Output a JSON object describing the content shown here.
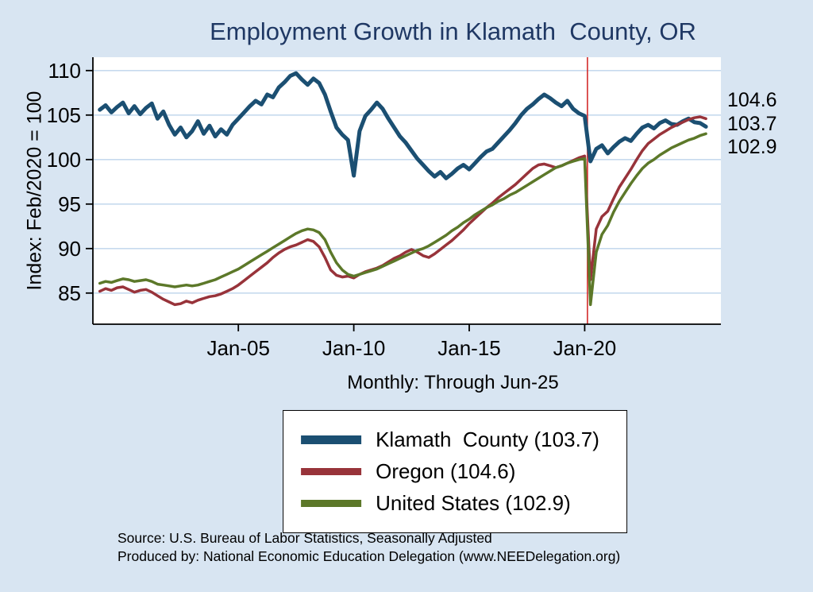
{
  "title": "Employment Growth in Klamath  County, OR",
  "subtitle": "Monthly: Through Jun-25",
  "y_axis_label": "Index: Feb/2020 = 100",
  "end_labels": [
    "104.6",
    "103.7",
    "102.9"
  ],
  "source": {
    "line1": "Source: U.S. Bureau of Labor Statistics, Seasonally Adjusted",
    "line2": "Produced by: National Economic Education Delegation (www.NEEDelegation.org)"
  },
  "legend": [
    {
      "label": "Klamath  County (103.7)",
      "color": "#1b4f72"
    },
    {
      "label": "Oregon (104.6)",
      "color": "#98333a"
    },
    {
      "label": "United States (102.9)",
      "color": "#5c7829"
    }
  ],
  "colors": {
    "background": "#d8e5f2",
    "plot_background": "#ffffff",
    "gridline": "#c6daee",
    "axis": "#000000",
    "title": "#1f3864",
    "vline": "#d42a2a"
  },
  "chart_data": {
    "type": "line",
    "title": "Employment Growth in Klamath  County, OR",
    "subtitle": "Monthly: Through Jun-25",
    "xlabel": "",
    "ylabel": "Index: Feb/2020 = 100",
    "x_unit": "year",
    "x_start": 1999.0,
    "x_step": 0.25,
    "xlim": [
      1998.7,
      2025.9
    ],
    "ylim": [
      81.5,
      111.5
    ],
    "yticks": [
      85,
      90,
      95,
      100,
      105,
      110
    ],
    "xticks": [
      {
        "x": 2005,
        "label": "Jan-05"
      },
      {
        "x": 2010,
        "label": "Jan-10"
      },
      {
        "x": 2015,
        "label": "Jan-15"
      },
      {
        "x": 2020,
        "label": "Jan-20"
      }
    ],
    "grid": "horizontal",
    "legend_position": "below",
    "vline": {
      "x": 2020.12,
      "color": "#d42a2a"
    },
    "series": [
      {
        "name": "Klamath  County",
        "end_value": 103.7,
        "color": "#1b4f72",
        "values": [
          105.6,
          106.1,
          105.3,
          105.9,
          106.4,
          105.2,
          106.0,
          105.1,
          105.8,
          106.3,
          104.6,
          105.4,
          103.9,
          102.8,
          103.6,
          102.5,
          103.2,
          104.3,
          102.9,
          103.8,
          102.6,
          103.4,
          102.8,
          103.9,
          104.6,
          105.3,
          106.0,
          106.6,
          106.2,
          107.3,
          107.0,
          108.1,
          108.7,
          109.4,
          109.7,
          109.0,
          108.4,
          109.1,
          108.6,
          107.3,
          105.4,
          103.6,
          102.8,
          102.2,
          98.2,
          103.2,
          104.9,
          105.6,
          106.4,
          105.7,
          104.6,
          103.6,
          102.6,
          101.9,
          101.0,
          100.1,
          99.4,
          98.7,
          98.1,
          98.6,
          97.9,
          98.4,
          99.0,
          99.4,
          98.9,
          99.6,
          100.3,
          100.9,
          101.2,
          101.9,
          102.6,
          103.3,
          104.1,
          105.0,
          105.7,
          106.2,
          106.8,
          107.3,
          106.9,
          106.4,
          106.0,
          106.6,
          105.7,
          105.2,
          104.9,
          99.8,
          101.2,
          101.6,
          100.7,
          101.4,
          102.0,
          102.4,
          102.1,
          102.9,
          103.6,
          103.9,
          103.5,
          104.1,
          104.4,
          104.0,
          103.9,
          104.3,
          104.6,
          104.2,
          104.1,
          103.7
        ]
      },
      {
        "name": "Oregon",
        "end_value": 104.6,
        "color": "#98333a",
        "values": [
          85.2,
          85.5,
          85.3,
          85.6,
          85.7,
          85.4,
          85.1,
          85.3,
          85.4,
          85.1,
          84.7,
          84.3,
          84.0,
          83.7,
          83.8,
          84.1,
          83.9,
          84.2,
          84.4,
          84.6,
          84.7,
          84.9,
          85.2,
          85.5,
          85.9,
          86.4,
          86.9,
          87.4,
          87.9,
          88.4,
          89.0,
          89.5,
          89.9,
          90.2,
          90.4,
          90.7,
          91.0,
          90.8,
          90.2,
          89.0,
          87.6,
          87.0,
          86.8,
          86.9,
          86.7,
          87.1,
          87.4,
          87.6,
          87.8,
          88.1,
          88.5,
          88.9,
          89.2,
          89.6,
          89.9,
          89.6,
          89.2,
          89.0,
          89.4,
          89.9,
          90.4,
          90.9,
          91.5,
          92.1,
          92.8,
          93.4,
          94.0,
          94.6,
          95.1,
          95.7,
          96.2,
          96.7,
          97.2,
          97.8,
          98.4,
          99.0,
          99.4,
          99.5,
          99.3,
          99.1,
          99.3,
          99.6,
          99.9,
          100.2,
          100.4,
          86.5,
          92.2,
          93.6,
          94.2,
          95.6,
          96.9,
          97.9,
          98.9,
          100.0,
          101.0,
          101.8,
          102.3,
          102.8,
          103.2,
          103.6,
          103.9,
          104.2,
          104.5,
          104.7,
          104.8,
          104.6
        ]
      },
      {
        "name": "United States",
        "end_value": 102.9,
        "color": "#5c7829",
        "values": [
          86.1,
          86.3,
          86.2,
          86.4,
          86.6,
          86.5,
          86.3,
          86.4,
          86.5,
          86.3,
          86.0,
          85.9,
          85.8,
          85.7,
          85.8,
          85.9,
          85.8,
          85.9,
          86.1,
          86.3,
          86.5,
          86.8,
          87.1,
          87.4,
          87.7,
          88.1,
          88.5,
          88.9,
          89.3,
          89.7,
          90.1,
          90.5,
          90.9,
          91.3,
          91.7,
          92.0,
          92.2,
          92.1,
          91.8,
          91.0,
          89.6,
          88.4,
          87.6,
          87.1,
          86.9,
          87.1,
          87.3,
          87.5,
          87.7,
          88.0,
          88.3,
          88.6,
          88.9,
          89.2,
          89.5,
          89.8,
          90.0,
          90.3,
          90.7,
          91.1,
          91.5,
          92.0,
          92.4,
          92.9,
          93.3,
          93.8,
          94.2,
          94.6,
          94.9,
          95.3,
          95.6,
          96.0,
          96.3,
          96.7,
          97.1,
          97.5,
          97.9,
          98.3,
          98.7,
          99.1,
          99.3,
          99.6,
          99.8,
          100.0,
          100.1,
          83.7,
          89.6,
          91.6,
          92.6,
          94.1,
          95.3,
          96.3,
          97.3,
          98.2,
          99.0,
          99.6,
          100.0,
          100.5,
          100.9,
          101.3,
          101.6,
          101.9,
          102.2,
          102.4,
          102.7,
          102.9
        ]
      }
    ]
  }
}
